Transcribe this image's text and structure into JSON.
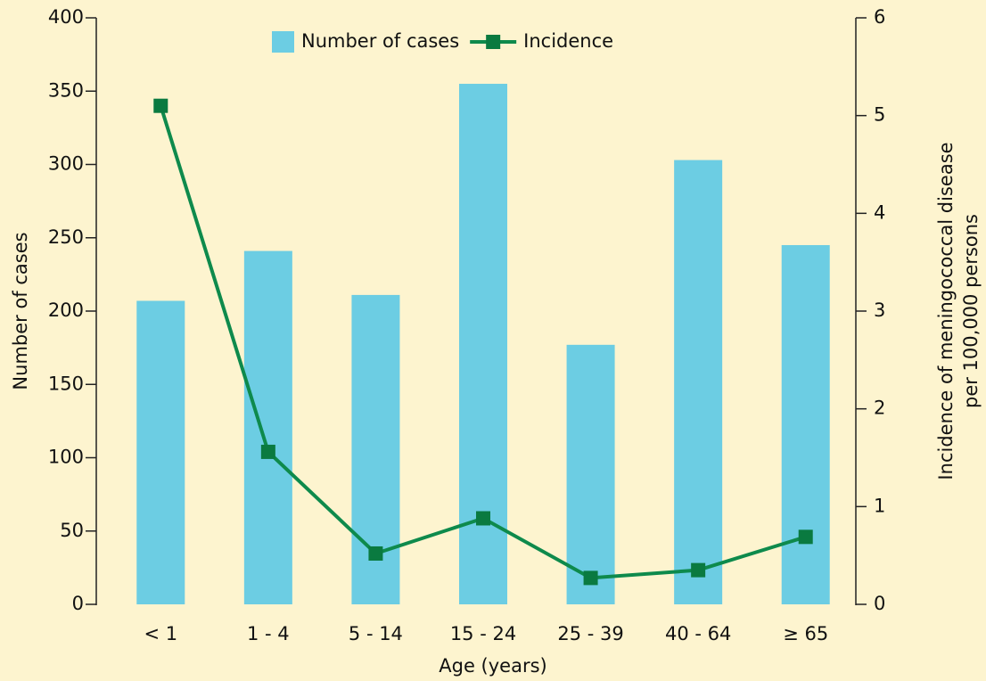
{
  "chart_data": {
    "type": "bar-line",
    "xlabel": "Age (years)",
    "ylabel": "Number of cases",
    "y2label": [
      "Incidence of meningococcal disease",
      "per 100,000 persons"
    ],
    "categories": [
      "< 1",
      "1 - 4",
      "5 - 14",
      "15 - 24",
      "25 - 39",
      "40 - 64",
      "≥ 65"
    ],
    "series": [
      {
        "name": "Number of cases",
        "type": "bar",
        "color": "#6ccde3",
        "values": [
          207,
          241,
          211,
          355,
          177,
          303,
          245
        ]
      },
      {
        "name": "Incidence",
        "type": "line",
        "axis": "y2",
        "color": "#0e8a4c",
        "values": [
          5.1,
          1.56,
          0.52,
          0.88,
          0.27,
          0.35,
          0.69
        ]
      }
    ],
    "ylim": [
      0,
      400
    ],
    "yticks": [
      0,
      50,
      100,
      150,
      200,
      250,
      300,
      350,
      400
    ],
    "y2lim": [
      0,
      6
    ],
    "y2ticks": [
      0,
      1,
      2,
      3,
      4,
      5,
      6
    ],
    "legend": "top"
  }
}
